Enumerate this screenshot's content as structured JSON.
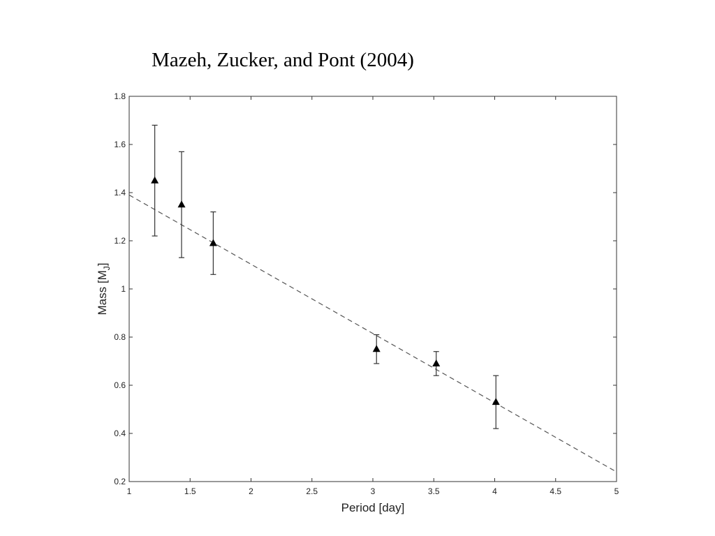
{
  "slide_title": "Mazeh, Zucker, and Pont (2004)",
  "chart_data": {
    "type": "scatter",
    "xlabel": "Period [day]",
    "ylabel_main": "Mass [M",
    "ylabel_sub": "J",
    "ylabel_close": "]",
    "xlim": [
      1,
      5
    ],
    "ylim": [
      0.2,
      1.8
    ],
    "xticks": [
      1,
      1.5,
      2,
      2.5,
      3,
      3.5,
      4,
      4.5,
      5
    ],
    "xtick_labels": [
      "1",
      "1.5",
      "2",
      "2.5",
      "3",
      "3.5",
      "4",
      "4.5",
      "5"
    ],
    "yticks": [
      0.2,
      0.4,
      0.6,
      0.8,
      1,
      1.2,
      1.4,
      1.6,
      1.8
    ],
    "ytick_labels": [
      "0.2",
      "0.4",
      "0.6",
      "0.8",
      "1",
      "1.2",
      "1.4",
      "1.6",
      "1.8"
    ],
    "grid": false,
    "points": [
      {
        "x": 1.21,
        "y": 1.45,
        "y_low": 1.22,
        "y_high": 1.68
      },
      {
        "x": 1.43,
        "y": 1.35,
        "y_low": 1.13,
        "y_high": 1.57
      },
      {
        "x": 1.69,
        "y": 1.19,
        "y_low": 1.06,
        "y_high": 1.32
      },
      {
        "x": 3.03,
        "y": 0.75,
        "y_low": 0.69,
        "y_high": 0.81
      },
      {
        "x": 3.52,
        "y": 0.69,
        "y_low": 0.64,
        "y_high": 0.74
      },
      {
        "x": 4.01,
        "y": 0.53,
        "y_low": 0.42,
        "y_high": 0.64
      }
    ],
    "fit_line": {
      "x": [
        1,
        5
      ],
      "y": [
        1.39,
        0.24
      ],
      "style": "dashed"
    },
    "colors": {
      "points": "#000000",
      "errorbars": "#333333",
      "fit_line": "#555555",
      "axes": "#333333"
    }
  }
}
